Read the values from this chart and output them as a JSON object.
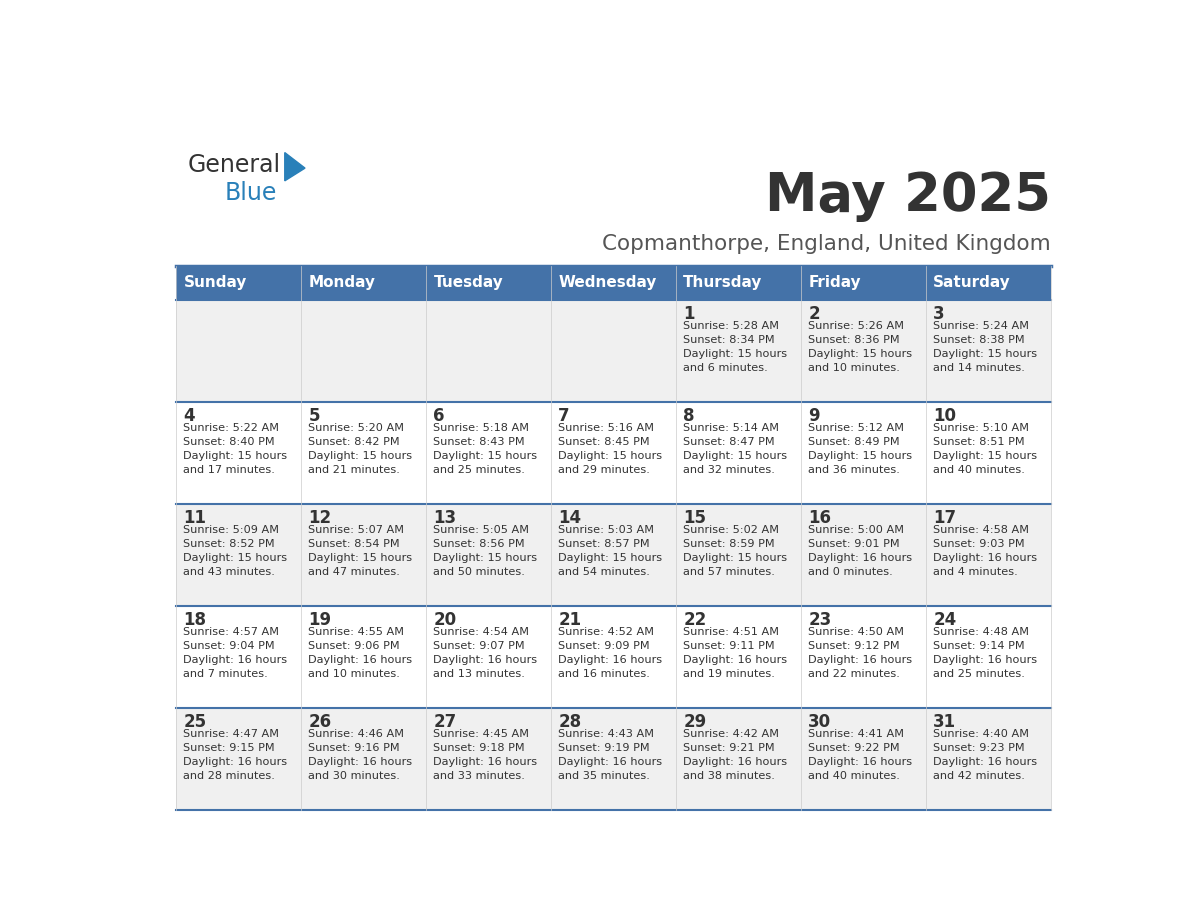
{
  "title": "May 2025",
  "subtitle": "Copmanthorpe, England, United Kingdom",
  "days_of_week": [
    "Sunday",
    "Monday",
    "Tuesday",
    "Wednesday",
    "Thursday",
    "Friday",
    "Saturday"
  ],
  "header_bg": "#4472A8",
  "header_text": "#ffffff",
  "cell_bg_odd": "#f0f0f0",
  "cell_bg_even": "#ffffff",
  "cell_text": "#333333",
  "border_color": "#4472A8",
  "title_color": "#333333",
  "subtitle_color": "#555555",
  "logo_general_color": "#333333",
  "logo_blue_color": "#2980b9",
  "calendar_data": [
    [
      null,
      null,
      null,
      null,
      {
        "day": 1,
        "sunrise": "5:28 AM",
        "sunset": "8:34 PM",
        "daylight": "15 hours and 6 minutes."
      },
      {
        "day": 2,
        "sunrise": "5:26 AM",
        "sunset": "8:36 PM",
        "daylight": "15 hours and 10 minutes."
      },
      {
        "day": 3,
        "sunrise": "5:24 AM",
        "sunset": "8:38 PM",
        "daylight": "15 hours and 14 minutes."
      }
    ],
    [
      {
        "day": 4,
        "sunrise": "5:22 AM",
        "sunset": "8:40 PM",
        "daylight": "15 hours and 17 minutes."
      },
      {
        "day": 5,
        "sunrise": "5:20 AM",
        "sunset": "8:42 PM",
        "daylight": "15 hours and 21 minutes."
      },
      {
        "day": 6,
        "sunrise": "5:18 AM",
        "sunset": "8:43 PM",
        "daylight": "15 hours and 25 minutes."
      },
      {
        "day": 7,
        "sunrise": "5:16 AM",
        "sunset": "8:45 PM",
        "daylight": "15 hours and 29 minutes."
      },
      {
        "day": 8,
        "sunrise": "5:14 AM",
        "sunset": "8:47 PM",
        "daylight": "15 hours and 32 minutes."
      },
      {
        "day": 9,
        "sunrise": "5:12 AM",
        "sunset": "8:49 PM",
        "daylight": "15 hours and 36 minutes."
      },
      {
        "day": 10,
        "sunrise": "5:10 AM",
        "sunset": "8:51 PM",
        "daylight": "15 hours and 40 minutes."
      }
    ],
    [
      {
        "day": 11,
        "sunrise": "5:09 AM",
        "sunset": "8:52 PM",
        "daylight": "15 hours and 43 minutes."
      },
      {
        "day": 12,
        "sunrise": "5:07 AM",
        "sunset": "8:54 PM",
        "daylight": "15 hours and 47 minutes."
      },
      {
        "day": 13,
        "sunrise": "5:05 AM",
        "sunset": "8:56 PM",
        "daylight": "15 hours and 50 minutes."
      },
      {
        "day": 14,
        "sunrise": "5:03 AM",
        "sunset": "8:57 PM",
        "daylight": "15 hours and 54 minutes."
      },
      {
        "day": 15,
        "sunrise": "5:02 AM",
        "sunset": "8:59 PM",
        "daylight": "15 hours and 57 minutes."
      },
      {
        "day": 16,
        "sunrise": "5:00 AM",
        "sunset": "9:01 PM",
        "daylight": "16 hours and 0 minutes."
      },
      {
        "day": 17,
        "sunrise": "4:58 AM",
        "sunset": "9:03 PM",
        "daylight": "16 hours and 4 minutes."
      }
    ],
    [
      {
        "day": 18,
        "sunrise": "4:57 AM",
        "sunset": "9:04 PM",
        "daylight": "16 hours and 7 minutes."
      },
      {
        "day": 19,
        "sunrise": "4:55 AM",
        "sunset": "9:06 PM",
        "daylight": "16 hours and 10 minutes."
      },
      {
        "day": 20,
        "sunrise": "4:54 AM",
        "sunset": "9:07 PM",
        "daylight": "16 hours and 13 minutes."
      },
      {
        "day": 21,
        "sunrise": "4:52 AM",
        "sunset": "9:09 PM",
        "daylight": "16 hours and 16 minutes."
      },
      {
        "day": 22,
        "sunrise": "4:51 AM",
        "sunset": "9:11 PM",
        "daylight": "16 hours and 19 minutes."
      },
      {
        "day": 23,
        "sunrise": "4:50 AM",
        "sunset": "9:12 PM",
        "daylight": "16 hours and 22 minutes."
      },
      {
        "day": 24,
        "sunrise": "4:48 AM",
        "sunset": "9:14 PM",
        "daylight": "16 hours and 25 minutes."
      }
    ],
    [
      {
        "day": 25,
        "sunrise": "4:47 AM",
        "sunset": "9:15 PM",
        "daylight": "16 hours and 28 minutes."
      },
      {
        "day": 26,
        "sunrise": "4:46 AM",
        "sunset": "9:16 PM",
        "daylight": "16 hours and 30 minutes."
      },
      {
        "day": 27,
        "sunrise": "4:45 AM",
        "sunset": "9:18 PM",
        "daylight": "16 hours and 33 minutes."
      },
      {
        "day": 28,
        "sunrise": "4:43 AM",
        "sunset": "9:19 PM",
        "daylight": "16 hours and 35 minutes."
      },
      {
        "day": 29,
        "sunrise": "4:42 AM",
        "sunset": "9:21 PM",
        "daylight": "16 hours and 38 minutes."
      },
      {
        "day": 30,
        "sunrise": "4:41 AM",
        "sunset": "9:22 PM",
        "daylight": "16 hours and 40 minutes."
      },
      {
        "day": 31,
        "sunrise": "4:40 AM",
        "sunset": "9:23 PM",
        "daylight": "16 hours and 42 minutes."
      }
    ]
  ]
}
